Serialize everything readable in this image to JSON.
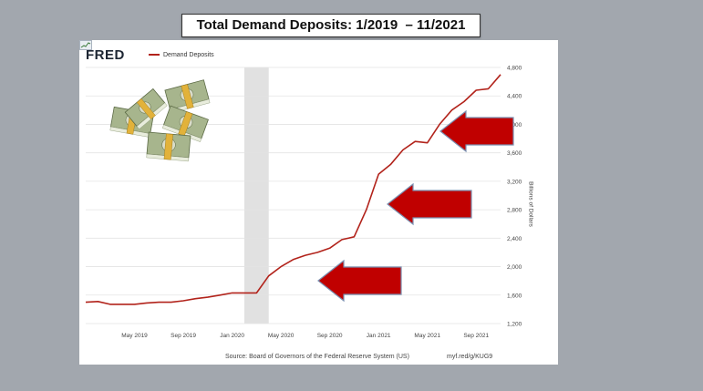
{
  "slide": {
    "title": "Total Demand Deposits: 1/2019  – 11/2021"
  },
  "fred": {
    "logo": "FRED",
    "legend_label": "Demand Deposits",
    "source": "Source: Board of Governors of the Federal Reserve System (US)",
    "url": "myf.red/g/KUG9"
  },
  "chart_data": {
    "type": "line",
    "title": "Total Demand Deposits: 1/2019  – 11/2021",
    "ylabel": "Billions of Dollars",
    "xlabel": "",
    "ylim": [
      1200,
      4800
    ],
    "yticks": [
      1200,
      1600,
      2000,
      2400,
      2800,
      3200,
      3600,
      4000,
      4400,
      4800
    ],
    "ytick_labels": [
      "1,200",
      "1,600",
      "2,000",
      "2,400",
      "2,800",
      "3,200",
      "3,600",
      "4,000",
      "4,400",
      "4,800"
    ],
    "xlim": [
      "2019-01",
      "2021-11"
    ],
    "xticks": [
      "2019-05",
      "2019-09",
      "2020-01",
      "2020-05",
      "2020-09",
      "2021-01",
      "2021-05",
      "2021-09"
    ],
    "xtick_labels": [
      "May 2019",
      "Sep 2019",
      "Jan 2020",
      "May 2020",
      "Sep 2020",
      "Jan 2021",
      "May 2021",
      "Sep 2021"
    ],
    "grid": true,
    "legend": "top-left",
    "recession_shading": [
      "2020-02",
      "2020-04"
    ],
    "series": [
      {
        "name": "Demand Deposits",
        "color": "#b2231b",
        "x": [
          "2019-01",
          "2019-02",
          "2019-03",
          "2019-04",
          "2019-05",
          "2019-06",
          "2019-07",
          "2019-08",
          "2019-09",
          "2019-10",
          "2019-11",
          "2019-12",
          "2020-01",
          "2020-02",
          "2020-03",
          "2020-04",
          "2020-05",
          "2020-06",
          "2020-07",
          "2020-08",
          "2020-09",
          "2020-10",
          "2020-11",
          "2020-12",
          "2021-01",
          "2021-02",
          "2021-03",
          "2021-04",
          "2021-05",
          "2021-06",
          "2021-07",
          "2021-08",
          "2021-09",
          "2021-10",
          "2021-11"
        ],
        "y": [
          1500,
          1510,
          1470,
          1470,
          1470,
          1490,
          1500,
          1500,
          1520,
          1550,
          1570,
          1600,
          1630,
          1630,
          1630,
          1870,
          2000,
          2100,
          2160,
          2200,
          2260,
          2380,
          2420,
          2800,
          3300,
          3440,
          3640,
          3760,
          3740,
          4000,
          4200,
          4320,
          4480,
          4500,
          4700
        ]
      }
    ]
  },
  "decorations": {
    "arrow_color": "#c00000",
    "arrow_count": 3,
    "money_image_icon": "money-stack-icon"
  }
}
